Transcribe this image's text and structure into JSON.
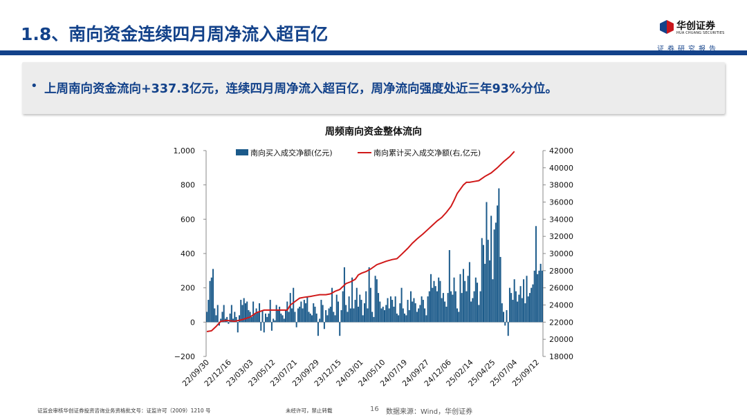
{
  "header": {
    "title": "1.8、南向资金连续四月周净流入超百亿",
    "logo_cn": "华创证券",
    "logo_en": "HUA CHUANG SECURITIES",
    "tagline": "证券研究报告"
  },
  "summary": {
    "bullet": "•",
    "text": "上周南向资金流向+337.3亿元，连续四月周净流入超百亿，周净流向强度处近三年93%分位。"
  },
  "colors": {
    "brand": "#13428a",
    "bar": "#1b5a8a",
    "line": "#d01818"
  },
  "chart_data": {
    "type": "bar+line",
    "title": "周频南向资金整体流向",
    "legend": [
      "南向买入成交净额(亿元)",
      "南向累计买入成交净额(右,亿元)"
    ],
    "left_axis": {
      "min": -200,
      "max": 1000,
      "ticks": [
        "−200",
        "0",
        "200",
        "400",
        "600",
        "800",
        "1,000"
      ]
    },
    "right_axis": {
      "min": 18000,
      "max": 42000,
      "ticks": [
        "18000",
        "20000",
        "22000",
        "24000",
        "26000",
        "28000",
        "30000",
        "32000",
        "34000",
        "36000",
        "38000",
        "40000",
        "42000"
      ]
    },
    "x_tick_labels": [
      "22/09/30",
      "22/12/16",
      "23/03/03",
      "23/05/12",
      "23/07/21",
      "23/09/29",
      "23/12/15",
      "24/03/01",
      "24/05/10",
      "24/07/19",
      "24/09/27",
      "24/12/06",
      "25/02/14",
      "25/04/25",
      "25/07/04",
      "25/09/12"
    ],
    "series": [
      {
        "name": "南向买入成交净额(亿元)",
        "kind": "bar",
        "axis": "left",
        "values": [
          60,
          130,
          240,
          260,
          310,
          80,
          40,
          100,
          -20,
          20,
          60,
          100,
          20,
          30,
          -10,
          50,
          100,
          20,
          60,
          30,
          -60,
          40,
          130,
          100,
          140,
          110,
          120,
          70,
          60,
          30,
          120,
          50,
          80,
          60,
          110,
          -50,
          70,
          -60,
          50,
          30,
          50,
          130,
          -50,
          20,
          10,
          100,
          70,
          90,
          50,
          40,
          20,
          70,
          120,
          60,
          170,
          80,
          200,
          60,
          -30,
          80,
          90,
          120,
          80,
          130,
          110,
          150,
          60,
          50,
          40,
          110,
          90,
          50,
          -80,
          20,
          130,
          100,
          -40,
          70,
          40,
          80,
          90,
          200,
          60,
          40,
          160,
          120,
          -80,
          70,
          180,
          320,
          100,
          60,
          150,
          80,
          260,
          80,
          130,
          200,
          90,
          160,
          130,
          40,
          110,
          180,
          80,
          320,
          200,
          60,
          30,
          270,
          250,
          170,
          120,
          80,
          90,
          70,
          100,
          140,
          80,
          150,
          130,
          90,
          150,
          50,
          40,
          110,
          200,
          80,
          50,
          40,
          130,
          70,
          180,
          120,
          140,
          110,
          60,
          80,
          100,
          150,
          130,
          80,
          40,
          150,
          180,
          280,
          200,
          240,
          210,
          180,
          260,
          240,
          140,
          170,
          120,
          90,
          170,
          420,
          180,
          160,
          260,
          180,
          80,
          60,
          280,
          170,
          310,
          240,
          180,
          270,
          350,
          120,
          140,
          180,
          260,
          230,
          100,
          180,
          490,
          450,
          340,
          700,
          480,
          360,
          620,
          250,
          540,
          580,
          680,
          780,
          380,
          110,
          60,
          -20,
          70,
          -80,
          200,
          170,
          130,
          250,
          180,
          120,
          160,
          210,
          140,
          250,
          110,
          270,
          150,
          170,
          200,
          220,
          300,
          560,
          280,
          300,
          340,
          300
        ]
      },
      {
        "name": "南向累计买入成交净额(右,亿元)",
        "kind": "line",
        "axis": "right",
        "points": [
          [
            0,
            20900
          ],
          [
            3,
            21000
          ],
          [
            6,
            21500
          ],
          [
            9,
            22100
          ],
          [
            13,
            22200
          ],
          [
            18,
            22100
          ],
          [
            23,
            22300
          ],
          [
            28,
            22600
          ],
          [
            32,
            23100
          ],
          [
            37,
            23400
          ],
          [
            42,
            23400
          ],
          [
            47,
            23400
          ],
          [
            52,
            23400
          ],
          [
            54,
            24000
          ],
          [
            57,
            24400
          ],
          [
            60,
            24800
          ],
          [
            63,
            24900
          ],
          [
            67,
            25000
          ],
          [
            70,
            25100
          ],
          [
            73,
            25200
          ],
          [
            77,
            25200
          ],
          [
            80,
            25300
          ],
          [
            83,
            25600
          ],
          [
            86,
            25800
          ],
          [
            90,
            26500
          ],
          [
            93,
            26700
          ],
          [
            96,
            27000
          ],
          [
            98,
            27500
          ],
          [
            100,
            27700
          ],
          [
            103,
            27900
          ],
          [
            106,
            28200
          ],
          [
            110,
            28700
          ],
          [
            113,
            28900
          ],
          [
            116,
            29100
          ],
          [
            120,
            29300
          ],
          [
            123,
            29400
          ],
          [
            126,
            29900
          ],
          [
            130,
            30600
          ],
          [
            133,
            31200
          ],
          [
            136,
            31700
          ],
          [
            140,
            32300
          ],
          [
            143,
            32800
          ],
          [
            146,
            33300
          ],
          [
            149,
            33800
          ],
          [
            152,
            34200
          ],
          [
            155,
            34800
          ],
          [
            158,
            35500
          ],
          [
            160,
            36200
          ],
          [
            162,
            37000
          ],
          [
            164,
            37500
          ],
          [
            166,
            38000
          ],
          [
            168,
            38300
          ],
          [
            170,
            38300
          ],
          [
            173,
            38400
          ],
          [
            176,
            38500
          ],
          [
            180,
            39000
          ],
          [
            184,
            39400
          ],
          [
            188,
            40000
          ],
          [
            192,
            40700
          ],
          [
            196,
            41300
          ],
          [
            199,
            41900
          ]
        ]
      }
    ]
  },
  "footer": {
    "license": "证监会审核华创证券投资咨询业务资格批文号：证监许可（2009）1210 号",
    "notice": "未经许可，禁止转载",
    "page_number": "16",
    "source": "数据来源：Wind，华创证券"
  }
}
